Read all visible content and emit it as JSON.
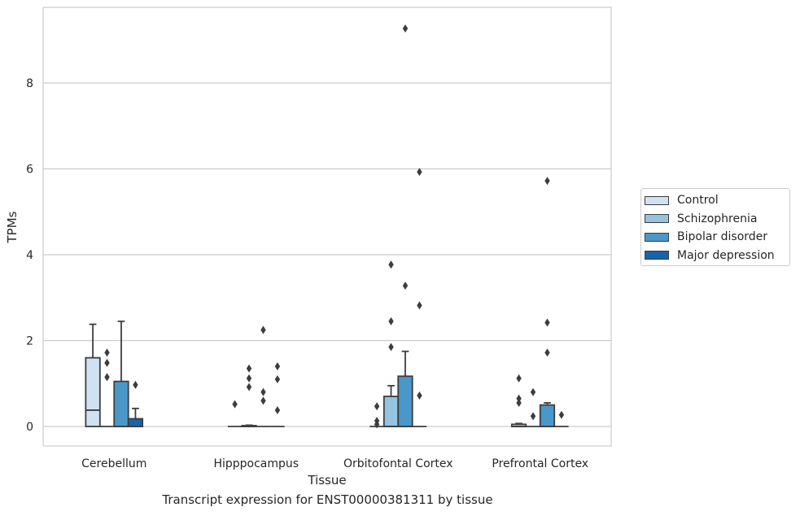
{
  "chart_data": {
    "type": "box",
    "title": "",
    "caption": "Transcript expression for ENST00000381311 by tissue",
    "xlabel": "Tissue",
    "ylabel": "TPMs",
    "ylim": [
      -0.45,
      9.75
    ],
    "yticks": [
      0,
      2,
      4,
      6,
      8
    ],
    "grid": "horizontal",
    "legend_position": "right",
    "categories": [
      "Cerebellum",
      "Hipppocampus",
      "Orbitofontal Cortex",
      "Prefrontal Cortex"
    ],
    "series": [
      {
        "name": "Control",
        "color": "#d0e1f2",
        "boxes": [
          {
            "q1": 0,
            "median": 0.38,
            "q3": 1.6,
            "whisker_low": 0,
            "whisker_high": 2.38,
            "outliers": []
          },
          {
            "q1": 0,
            "median": 0,
            "q3": 0,
            "whisker_low": 0,
            "whisker_high": 0,
            "outliers": [
              0.52
            ]
          },
          {
            "q1": 0,
            "median": 0,
            "q3": 0,
            "whisker_low": 0,
            "whisker_high": 0,
            "outliers": [
              0.05,
              0.13,
              0.47
            ]
          },
          {
            "q1": 0,
            "median": 0,
            "q3": 0.05,
            "whisker_low": 0,
            "whisker_high": 0.07,
            "outliers": [
              0.55,
              0.65,
              1.12
            ]
          }
        ]
      },
      {
        "name": "Schizophrenia",
        "color": "#94c4df",
        "boxes": [
          {
            "q1": 0,
            "median": 0,
            "q3": 0,
            "whisker_low": 0,
            "whisker_high": 0,
            "outliers": [
              1.15,
              1.48,
              1.72
            ]
          },
          {
            "q1": 0,
            "median": 0,
            "q3": 0.02,
            "whisker_low": 0,
            "whisker_high": 0.03,
            "outliers": [
              0.92,
              1.12,
              1.35
            ]
          },
          {
            "q1": 0,
            "median": 0,
            "q3": 0.7,
            "whisker_low": 0,
            "whisker_high": 0.95,
            "outliers": [
              1.85,
              2.45,
              3.77
            ]
          },
          {
            "q1": 0,
            "median": 0,
            "q3": 0,
            "whisker_low": 0,
            "whisker_high": 0,
            "outliers": [
              0.24,
              0.8
            ]
          }
        ]
      },
      {
        "name": "Bipolar disorder",
        "color": "#4a98c9",
        "boxes": [
          {
            "q1": 0,
            "median": 0,
            "q3": 1.05,
            "whisker_low": 0,
            "whisker_high": 2.45,
            "outliers": []
          },
          {
            "q1": 0,
            "median": 0,
            "q3": 0,
            "whisker_low": 0,
            "whisker_high": 0,
            "outliers": [
              0.6,
              0.8,
              2.25
            ]
          },
          {
            "q1": 0,
            "median": 0,
            "q3": 1.17,
            "whisker_low": 0,
            "whisker_high": 1.75,
            "outliers": [
              3.28,
              9.27
            ]
          },
          {
            "q1": 0,
            "median": 0,
            "q3": 0.5,
            "whisker_low": 0,
            "whisker_high": 0.55,
            "outliers": [
              1.72,
              2.42,
              5.72
            ]
          }
        ]
      },
      {
        "name": "Major depression",
        "color": "#1764ab",
        "boxes": [
          {
            "q1": 0,
            "median": 0,
            "q3": 0.18,
            "whisker_low": 0,
            "whisker_high": 0.42,
            "outliers": [
              0.97
            ]
          },
          {
            "q1": 0,
            "median": 0,
            "q3": 0,
            "whisker_low": 0,
            "whisker_high": 0,
            "outliers": [
              0.38,
              1.1,
              1.4
            ]
          },
          {
            "q1": 0,
            "median": 0,
            "q3": 0,
            "whisker_low": 0,
            "whisker_high": 0,
            "outliers": [
              0.72,
              2.82,
              5.93
            ]
          },
          {
            "q1": 0,
            "median": 0,
            "q3": 0,
            "whisker_low": 0,
            "whisker_high": 0,
            "outliers": [
              0.27
            ]
          }
        ]
      }
    ]
  }
}
